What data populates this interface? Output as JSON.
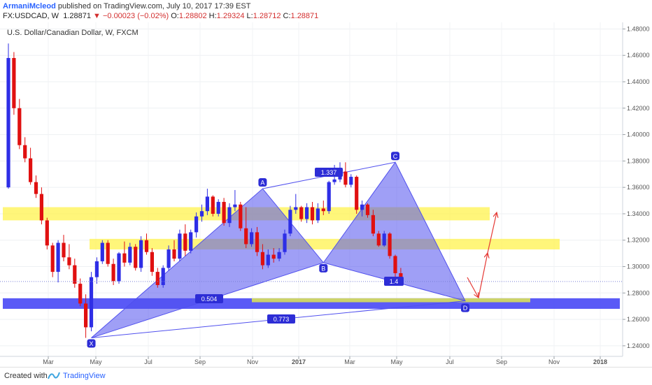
{
  "header": {
    "author": "ArmaniMcleod",
    "published": "published on TradingView.com, July 10, 2017 17:39 EST",
    "symbol": "FX:USDCAD, W",
    "price": "1.28871",
    "change": "−0.00023 (−0.02%)",
    "o_label": "O:",
    "o": "1.28802",
    "h_label": "H:",
    "h": "1.29324",
    "l_label": "L:",
    "l": "1.28712",
    "c_label": "C:",
    "c": "1.28871"
  },
  "footer": {
    "created_with": "Created with",
    "brand": "TradingView"
  },
  "colors": {
    "up": "#2e2ee6",
    "down": "#e01010",
    "zone_yellow": "#fff34d",
    "zone_blue": "#3d3df5",
    "pattern": "#5050ee",
    "projection": "#e53935"
  },
  "chart_data": {
    "type": "candlestick",
    "title": "U.S. Dollar/Canadian Dollar, W, FXCM",
    "xlabel": "",
    "ylabel": "",
    "ylim": [
      1.232,
      1.485
    ],
    "y_ticks": [
      "1.48000",
      "1.46000",
      "1.44000",
      "1.42000",
      "1.40000",
      "1.38000",
      "1.36000",
      "1.34000",
      "1.32000",
      "1.30000",
      "1.28000",
      "1.26000",
      "1.24000"
    ],
    "x_ticks": [
      "Mar",
      "May",
      "Jul",
      "Sep",
      "Nov",
      "2017",
      "Mar",
      "May",
      "Jul",
      "Sep",
      "Nov",
      "2018"
    ],
    "last_price": "1.28871",
    "weekly_ohlc": [
      [
        1.36,
        1.469,
        1.359,
        1.458
      ],
      [
        1.458,
        1.4625,
        1.415,
        1.42
      ],
      [
        1.42,
        1.427,
        1.389,
        1.392
      ],
      [
        1.392,
        1.398,
        1.379,
        1.382
      ],
      [
        1.382,
        1.39,
        1.362,
        1.364
      ],
      [
        1.364,
        1.369,
        1.352,
        1.355
      ],
      [
        1.355,
        1.36,
        1.332,
        1.335
      ],
      [
        1.335,
        1.337,
        1.313,
        1.316
      ],
      [
        1.316,
        1.318,
        1.292,
        1.296
      ],
      [
        1.296,
        1.32,
        1.288,
        1.318
      ],
      [
        1.318,
        1.324,
        1.304,
        1.307
      ],
      [
        1.307,
        1.317,
        1.298,
        1.301
      ],
      [
        1.301,
        1.306,
        1.284,
        1.287
      ],
      [
        1.287,
        1.291,
        1.27,
        1.272
      ],
      [
        1.272,
        1.279,
        1.246,
        1.254
      ],
      [
        1.254,
        1.296,
        1.251,
        1.292
      ],
      [
        1.292,
        1.307,
        1.287,
        1.304
      ],
      [
        1.304,
        1.32,
        1.302,
        1.318
      ],
      [
        1.318,
        1.32,
        1.3,
        1.302
      ],
      [
        1.302,
        1.306,
        1.286,
        1.289
      ],
      [
        1.289,
        1.311,
        1.287,
        1.31
      ],
      [
        1.31,
        1.319,
        1.3,
        1.303
      ],
      [
        1.303,
        1.318,
        1.301,
        1.315
      ],
      [
        1.315,
        1.317,
        1.297,
        1.299
      ],
      [
        1.299,
        1.323,
        1.296,
        1.32
      ],
      [
        1.32,
        1.325,
        1.309,
        1.311
      ],
      [
        1.311,
        1.314,
        1.293,
        1.296
      ],
      [
        1.296,
        1.299,
        1.284,
        1.286
      ],
      [
        1.286,
        1.301,
        1.284,
        1.299
      ],
      [
        1.299,
        1.316,
        1.297,
        1.313
      ],
      [
        1.313,
        1.32,
        1.304,
        1.306
      ],
      [
        1.306,
        1.328,
        1.304,
        1.325
      ],
      [
        1.325,
        1.332,
        1.308,
        1.312
      ],
      [
        1.312,
        1.328,
        1.31,
        1.326
      ],
      [
        1.326,
        1.341,
        1.322,
        1.338
      ],
      [
        1.338,
        1.347,
        1.334,
        1.342
      ],
      [
        1.342,
        1.359,
        1.339,
        1.353
      ],
      [
        1.353,
        1.354,
        1.338,
        1.34
      ],
      [
        1.34,
        1.351,
        1.338,
        1.349
      ],
      [
        1.349,
        1.352,
        1.331,
        1.333
      ],
      [
        1.333,
        1.348,
        1.33,
        1.345
      ],
      [
        1.345,
        1.358,
        1.342,
        1.347
      ],
      [
        1.347,
        1.349,
        1.327,
        1.329
      ],
      [
        1.329,
        1.345,
        1.314,
        1.317
      ],
      [
        1.317,
        1.329,
        1.315,
        1.326
      ],
      [
        1.326,
        1.33,
        1.308,
        1.311
      ],
      [
        1.311,
        1.317,
        1.298,
        1.301
      ],
      [
        1.301,
        1.313,
        1.299,
        1.309
      ],
      [
        1.309,
        1.314,
        1.303,
        1.306
      ],
      [
        1.306,
        1.314,
        1.304,
        1.311
      ],
      [
        1.311,
        1.328,
        1.309,
        1.325
      ],
      [
        1.325,
        1.346,
        1.323,
        1.343
      ],
      [
        1.343,
        1.355,
        1.34,
        1.345
      ],
      [
        1.345,
        1.346,
        1.334,
        1.336
      ],
      [
        1.336,
        1.348,
        1.333,
        1.345
      ],
      [
        1.345,
        1.349,
        1.332,
        1.335
      ],
      [
        1.335,
        1.348,
        1.333,
        1.344
      ],
      [
        1.344,
        1.35,
        1.339,
        1.342
      ],
      [
        1.342,
        1.365,
        1.34,
        1.364
      ],
      [
        1.364,
        1.377,
        1.362,
        1.366
      ],
      [
        1.366,
        1.379,
        1.364,
        1.372
      ],
      [
        1.372,
        1.379,
        1.36,
        1.362
      ],
      [
        1.362,
        1.37,
        1.36,
        1.368
      ],
      [
        1.368,
        1.369,
        1.34,
        1.343
      ],
      [
        1.343,
        1.35,
        1.338,
        1.347
      ],
      [
        1.347,
        1.348,
        1.337,
        1.339
      ],
      [
        1.339,
        1.343,
        1.323,
        1.325
      ],
      [
        1.325,
        1.327,
        1.315,
        1.316
      ],
      [
        1.316,
        1.327,
        1.315,
        1.325
      ],
      [
        1.325,
        1.326,
        1.306,
        1.308
      ],
      [
        1.308,
        1.309,
        1.292,
        1.295
      ],
      [
        1.295,
        1.299,
        1.288,
        1.289
      ]
    ],
    "zones": [
      {
        "color": "yellow",
        "from": 1.335,
        "to": 1.345
      },
      {
        "color": "yellow",
        "from": 1.313,
        "to": 1.321
      },
      {
        "color": "blue",
        "from": 1.268,
        "to": 1.276
      },
      {
        "color": "yellow",
        "from": 1.273,
        "to": 1.276
      }
    ],
    "pattern_points": [
      {
        "label": "X",
        "value": 1.246
      },
      {
        "label": "A",
        "value": 1.359
      },
      {
        "label": "B",
        "value": 1.303
      },
      {
        "label": "C",
        "value": 1.379
      },
      {
        "label": "D",
        "value": 1.274
      }
    ],
    "ratios": [
      "0.504",
      "1.337",
      "1.4",
      "0.773"
    ]
  }
}
